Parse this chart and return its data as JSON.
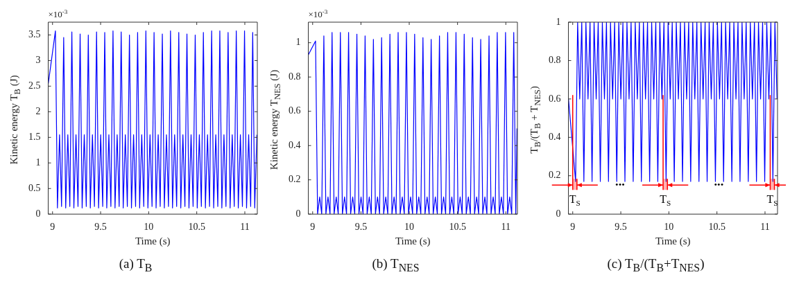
{
  "chart_data": [
    {
      "type": "line",
      "title": "(a) T$_{B}$",
      "xlabel": "Time (s)",
      "ylabel": "Kinetic energy T$_{B}$ (J)",
      "color": "#0000ff",
      "xlim": [
        8.955,
        11.13
      ],
      "ylim": [
        0,
        3.75
      ],
      "xticks": [
        9,
        9.5,
        10,
        10.5,
        11
      ],
      "yticks": [
        0,
        0.5,
        1,
        1.5,
        2,
        2.5,
        3,
        3.5
      ],
      "annotations": [
        "×10$^{-3}$"
      ],
      "x": [
        8.956,
        9.03,
        9.051,
        9.073,
        9.094,
        9.116,
        9.137,
        9.159,
        9.18,
        9.201,
        9.222,
        9.244,
        9.265,
        9.287,
        9.308,
        9.33,
        9.351,
        9.372,
        9.393,
        9.415,
        9.436,
        9.458,
        9.479,
        9.501,
        9.522,
        9.543,
        9.564,
        9.586,
        9.607,
        9.629,
        9.65,
        9.672,
        9.693,
        9.714,
        9.735,
        9.757,
        9.778,
        9.8,
        9.821,
        9.843,
        9.864,
        9.885,
        9.906,
        9.928,
        9.949,
        9.971,
        9.992,
        10.014,
        10.035,
        10.056,
        10.077,
        10.099,
        10.12,
        10.142,
        10.163,
        10.185,
        10.206,
        10.227,
        10.248,
        10.27,
        10.291,
        10.313,
        10.334,
        10.356,
        10.377,
        10.398,
        10.419,
        10.441,
        10.462,
        10.484,
        10.505,
        10.527,
        10.548,
        10.569,
        10.59,
        10.612,
        10.633,
        10.655,
        10.676,
        10.698,
        10.719,
        10.74,
        10.761,
        10.783,
        10.804,
        10.826,
        10.847,
        10.869,
        10.89,
        10.911,
        10.932,
        10.954,
        10.975,
        10.997,
        11.018,
        11.04,
        11.061,
        11.082,
        11.103,
        11.125
      ],
      "values": [
        2.55,
        3.58,
        0.12,
        1.55,
        0.15,
        3.45,
        0.12,
        1.55,
        0.15,
        3.56,
        0.12,
        1.55,
        0.15,
        3.52,
        0.12,
        1.55,
        0.15,
        3.5,
        0.12,
        1.55,
        0.15,
        3.56,
        0.12,
        1.55,
        0.15,
        3.55,
        0.12,
        1.55,
        0.15,
        3.58,
        0.12,
        1.55,
        0.15,
        3.56,
        0.12,
        1.55,
        0.15,
        3.5,
        0.12,
        1.55,
        0.15,
        3.55,
        0.12,
        1.55,
        0.15,
        3.58,
        0.12,
        1.55,
        0.15,
        3.55,
        0.12,
        1.55,
        0.15,
        3.52,
        0.12,
        1.55,
        0.15,
        3.58,
        0.12,
        1.55,
        0.15,
        3.55,
        0.12,
        1.55,
        0.15,
        3.52,
        0.12,
        1.55,
        0.15,
        3.5,
        0.12,
        1.55,
        0.15,
        3.55,
        0.12,
        1.55,
        0.15,
        3.58,
        0.12,
        1.55,
        0.15,
        3.58,
        0.12,
        1.55,
        0.15,
        3.55,
        0.12,
        1.55,
        0.15,
        3.58,
        0.12,
        1.55,
        0.15,
        3.58,
        0.12,
        1.55,
        0.15,
        3.55,
        0.12,
        1.55
      ]
    },
    {
      "type": "line",
      "title": "(b) T$_{NES}$",
      "xlabel": "Time (s)",
      "ylabel": "Kinetic energy T$_{NES}$ (J)",
      "color": "#0000ff",
      "xlim": [
        8.955,
        11.12
      ],
      "ylim": [
        0,
        1.12
      ],
      "xticks": [
        9,
        9.5,
        10,
        10.5,
        11
      ],
      "yticks": [
        0,
        0.2,
        0.4,
        0.6,
        0.8,
        1
      ],
      "annotations": [
        "×10$^{-3}$"
      ],
      "x": [
        8.956,
        9.03,
        9.051,
        9.073,
        9.094,
        9.116,
        9.137,
        9.159,
        9.18,
        9.201,
        9.222,
        9.244,
        9.265,
        9.287,
        9.308,
        9.33,
        9.351,
        9.372,
        9.393,
        9.415,
        9.436,
        9.458,
        9.479,
        9.501,
        9.522,
        9.543,
        9.564,
        9.586,
        9.607,
        9.629,
        9.65,
        9.672,
        9.693,
        9.714,
        9.735,
        9.757,
        9.778,
        9.8,
        9.821,
        9.843,
        9.864,
        9.885,
        9.906,
        9.928,
        9.949,
        9.971,
        9.992,
        10.014,
        10.035,
        10.056,
        10.077,
        10.099,
        10.12,
        10.142,
        10.163,
        10.185,
        10.206,
        10.227,
        10.248,
        10.27,
        10.291,
        10.313,
        10.334,
        10.356,
        10.377,
        10.398,
        10.419,
        10.441,
        10.462,
        10.484,
        10.505,
        10.527,
        10.548,
        10.569,
        10.59,
        10.612,
        10.633,
        10.655,
        10.676,
        10.698,
        10.719,
        10.74,
        10.761,
        10.783,
        10.804,
        10.826,
        10.847,
        10.869,
        10.89,
        10.911,
        10.932,
        10.954,
        10.975,
        10.997,
        11.018,
        11.04,
        11.061,
        11.082,
        11.103,
        11.115
      ],
      "values": [
        0.93,
        1.01,
        0,
        0.1,
        0,
        1.04,
        0,
        0.1,
        0,
        1.06,
        0,
        0.1,
        0,
        1.06,
        0,
        0.1,
        0,
        1.06,
        0,
        0.1,
        0,
        1.05,
        0,
        0.1,
        0,
        1.04,
        0,
        0.1,
        0,
        1.02,
        0,
        0.1,
        0,
        1.03,
        0,
        0.1,
        0,
        1.05,
        0,
        0.1,
        0,
        1.06,
        0,
        0.1,
        0,
        1.06,
        0,
        0.1,
        0,
        1.05,
        0,
        0.1,
        0,
        1.03,
        0,
        0.1,
        0,
        1.02,
        0,
        0.1,
        0,
        1.04,
        0,
        0.1,
        0,
        1.06,
        0,
        0.1,
        0,
        1.06,
        0,
        0.1,
        0,
        1.05,
        0,
        0.1,
        0,
        1.03,
        0,
        0.1,
        0,
        1.02,
        0,
        0.1,
        0,
        1.04,
        0,
        0.1,
        0,
        1.06,
        0,
        0.1,
        0,
        1.06,
        0,
        0.1,
        0,
        1.06,
        0,
        0.5
      ]
    },
    {
      "type": "line",
      "title": "(c) T$_{B}$/(T$_{B}$+T$_{NES}$)",
      "xlabel": "Time (s)",
      "ylabel": "T$_{B}$/(T$_{B}$ + T$_{NES}$)",
      "color": "#0000ff",
      "xlim": [
        8.955,
        11.13
      ],
      "ylim": [
        0,
        1
      ],
      "xticks": [
        9,
        9.5,
        10,
        10.5,
        11
      ],
      "yticks": [
        0,
        0.2,
        0.4,
        0.6,
        0.8,
        1
      ],
      "annotations": [
        "•••",
        "•••"
      ],
      "bands": [
        {
          "axis": "x",
          "from": 9.0,
          "to": 9.044,
          "label": "T$_{S}$",
          "color": "#ff0000"
        },
        {
          "axis": "x",
          "from": 9.94,
          "to": 9.985,
          "label": "T$_{S}$",
          "color": "#ff0000"
        },
        {
          "axis": "x",
          "from": 11.054,
          "to": 11.098,
          "label": "T$_{S}$",
          "color": "#ff0000"
        }
      ],
      "x": [
        8.956,
        9.03,
        9.051,
        9.073,
        9.094,
        9.116,
        9.137,
        9.159,
        9.18,
        9.201,
        9.222,
        9.244,
        9.265,
        9.287,
        9.308,
        9.33,
        9.351,
        9.372,
        9.393,
        9.415,
        9.436,
        9.458,
        9.479,
        9.501,
        9.522,
        9.543,
        9.564,
        9.586,
        9.607,
        9.629,
        9.65,
        9.672,
        9.693,
        9.714,
        9.735,
        9.757,
        9.778,
        9.8,
        9.821,
        9.843,
        9.864,
        9.885,
        9.906,
        9.928,
        9.949,
        9.971,
        9.992,
        10.014,
        10.035,
        10.056,
        10.077,
        10.099,
        10.12,
        10.142,
        10.163,
        10.185,
        10.206,
        10.227,
        10.248,
        10.27,
        10.291,
        10.313,
        10.334,
        10.356,
        10.377,
        10.398,
        10.419,
        10.441,
        10.462,
        10.484,
        10.505,
        10.527,
        10.548,
        10.569,
        10.59,
        10.612,
        10.633,
        10.655,
        10.676,
        10.698,
        10.719,
        10.74,
        10.761,
        10.783,
        10.804,
        10.826,
        10.847,
        10.869,
        10.89,
        10.911,
        10.932,
        10.954,
        10.975,
        10.997,
        11.018,
        11.04,
        11.061,
        11.082,
        11.103,
        11.125
      ],
      "values": [
        0.6,
        0.17,
        1,
        0.6,
        1,
        0.17,
        1,
        0.6,
        1,
        0.17,
        1,
        0.6,
        1,
        0.17,
        1,
        0.6,
        1,
        0.17,
        1,
        0.6,
        1,
        0.17,
        1,
        0.6,
        1,
        0.17,
        1,
        0.6,
        1,
        0.17,
        1,
        0.6,
        1,
        0.17,
        1,
        0.6,
        1,
        0.17,
        1,
        0.6,
        1,
        0.17,
        1,
        0.6,
        1,
        0.17,
        1,
        0.6,
        1,
        0.17,
        1,
        0.6,
        1,
        0.17,
        1,
        0.6,
        1,
        0.17,
        1,
        0.6,
        1,
        0.17,
        1,
        0.6,
        1,
        0.17,
        1,
        0.6,
        1,
        0.17,
        1,
        0.6,
        1,
        0.17,
        1,
        0.6,
        1,
        0.17,
        1,
        0.6,
        1,
        0.17,
        1,
        0.6,
        1,
        0.17,
        1,
        0.6,
        1,
        0.17,
        1,
        0.6,
        1,
        0.17,
        1,
        0.6,
        1,
        0.17,
        1,
        0.6
      ]
    }
  ]
}
